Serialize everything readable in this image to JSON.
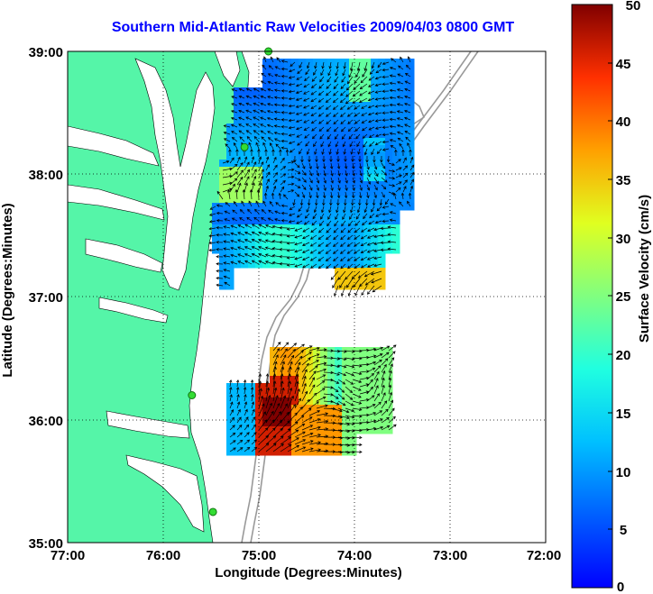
{
  "title": "Southern Mid-Atlantic Raw Velocities 2009/04/03 0800 GMT",
  "xaxis": {
    "label": "Longitude (Degrees:Minutes)",
    "ticks": [
      "77:00",
      "76:00",
      "75:00",
      "74:00",
      "73:00",
      "72:00"
    ]
  },
  "yaxis": {
    "label": "Latitude (Degrees:Minutes)",
    "ticks": [
      "39:00",
      "38:00",
      "37:00",
      "36:00",
      "35:00"
    ]
  },
  "colorbar": {
    "label": "Surface Velocity (cm/s)",
    "ticks": [
      "50",
      "45",
      "40",
      "35",
      "30",
      "25",
      "20",
      "15",
      "10",
      "5",
      "0"
    ],
    "range": [
      0,
      50
    ],
    "colormap": "jet"
  },
  "colors": {
    "land": "#55f5a8",
    "water": "#ffffff",
    "bathymetry": "#999999",
    "station": "#33dd33"
  },
  "chart_data": {
    "type": "heatmap",
    "title": "Southern Mid-Atlantic Raw Velocities 2009/04/03 0800 GMT",
    "xlabel": "Longitude (Degrees:Minutes)",
    "ylabel": "Latitude (Degrees:Minutes)",
    "xlim": [
      -77,
      -72
    ],
    "ylim": [
      35,
      39
    ],
    "grid": true,
    "colorbar_label": "Surface Velocity (cm/s)",
    "clim": [
      0,
      50
    ],
    "north_region_lon_range": [
      -75.55,
      -73.55
    ],
    "north_region_lat_range": [
      36.9,
      38.95
    ],
    "north_region_typical_speed_cm_s": 9,
    "south_region_lon_range": [
      -75.55,
      -74.05
    ],
    "south_region_lat_range": [
      35.75,
      36.6
    ],
    "south_region_peak_speed_cm_s": 50,
    "stations": [
      {
        "lon": -74.9,
        "lat": 39.0
      },
      {
        "lon": -75.15,
        "lat": 38.22
      },
      {
        "lon": -75.7,
        "lat": 36.2
      },
      {
        "lon": -75.48,
        "lat": 35.25
      }
    ]
  }
}
